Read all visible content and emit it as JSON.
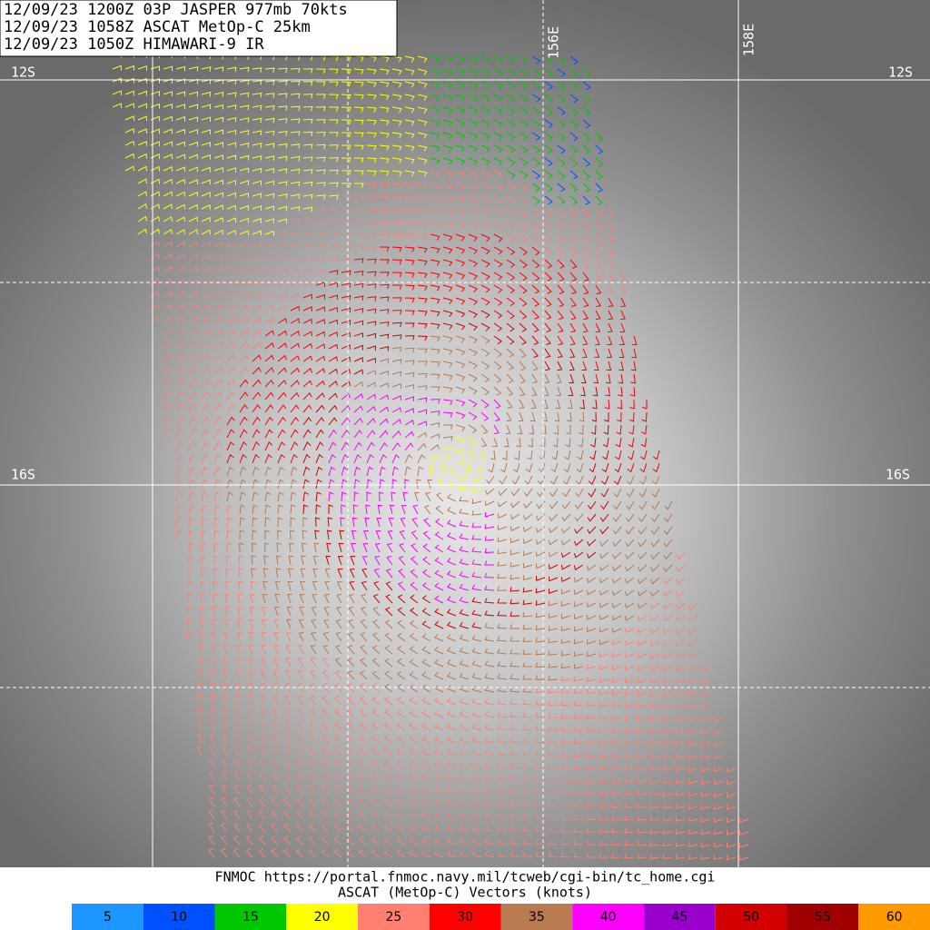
{
  "header": {
    "lines": [
      "12/09/23 1200Z  03P JASPER 977mb 70kts",
      "12/09/23 1058Z  ASCAT MetOp-C 25km",
      "12/09/23 1050Z  HIMAWARI-9 IR"
    ]
  },
  "grid_labels": {
    "lat": [
      "12S",
      "16S"
    ],
    "lon": [
      "156E",
      "158E"
    ]
  },
  "footer": {
    "lines": [
      "FNMOC https://portal.fnmoc.navy.mil/tcweb/cgi-bin/tc_home.cgi",
      "ASCAT (MetOp-C) Vectors (knots)"
    ]
  },
  "legend": [
    {
      "value": 5,
      "color": "#1e96ff"
    },
    {
      "value": 10,
      "color": "#0050ff"
    },
    {
      "value": 15,
      "color": "#00c800"
    },
    {
      "value": 20,
      "color": "#ffff00"
    },
    {
      "value": 25,
      "color": "#ff8070"
    },
    {
      "value": 30,
      "color": "#ff0000"
    },
    {
      "value": 35,
      "color": "#b87a50"
    },
    {
      "value": 40,
      "color": "#ff00ff"
    },
    {
      "value": 45,
      "color": "#9900cc"
    },
    {
      "value": 50,
      "color": "#d20000"
    },
    {
      "value": 55,
      "color": "#a00000"
    },
    {
      "value": 60,
      "color": "#ff9900"
    }
  ]
}
